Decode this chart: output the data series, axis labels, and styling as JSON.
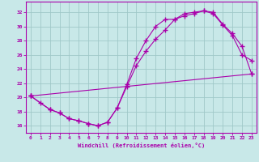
{
  "xlabel": "Windchill (Refroidissement éolien,°C)",
  "xlim": [
    -0.5,
    23.5
  ],
  "ylim": [
    15.0,
    33.5
  ],
  "xticks": [
    0,
    1,
    2,
    3,
    4,
    5,
    6,
    7,
    8,
    9,
    10,
    11,
    12,
    13,
    14,
    15,
    16,
    17,
    18,
    19,
    20,
    21,
    22,
    23
  ],
  "yticks": [
    16,
    18,
    20,
    22,
    24,
    26,
    28,
    30,
    32
  ],
  "background_color": "#c8e8e8",
  "grid_color": "#a0c8c8",
  "line_color": "#aa00aa",
  "line1_x": [
    0,
    1,
    2,
    3,
    4,
    5,
    6,
    7,
    8,
    9,
    10,
    11,
    12,
    13,
    14,
    15,
    16,
    17,
    18,
    19,
    20,
    21,
    22,
    23
  ],
  "line1_y": [
    20.2,
    19.2,
    18.3,
    17.8,
    17.0,
    16.7,
    16.3,
    16.0,
    16.5,
    18.5,
    21.8,
    25.5,
    28.0,
    30.0,
    31.0,
    31.0,
    31.5,
    31.8,
    32.2,
    31.8,
    30.2,
    28.7,
    26.0,
    25.2
  ],
  "line2_x": [
    0,
    2,
    3,
    4,
    5,
    6,
    7,
    8,
    9,
    10,
    11,
    12,
    13,
    14,
    15,
    16,
    17,
    18,
    19,
    20,
    21,
    22,
    23
  ],
  "line2_y": [
    20.2,
    18.3,
    17.8,
    17.0,
    16.7,
    16.3,
    16.0,
    16.5,
    18.5,
    21.5,
    24.5,
    26.5,
    28.2,
    29.5,
    31.0,
    31.8,
    32.0,
    32.2,
    32.0,
    30.3,
    29.0,
    27.2,
    23.3
  ],
  "line3_x": [
    0,
    23
  ],
  "line3_y": [
    20.2,
    23.3
  ]
}
